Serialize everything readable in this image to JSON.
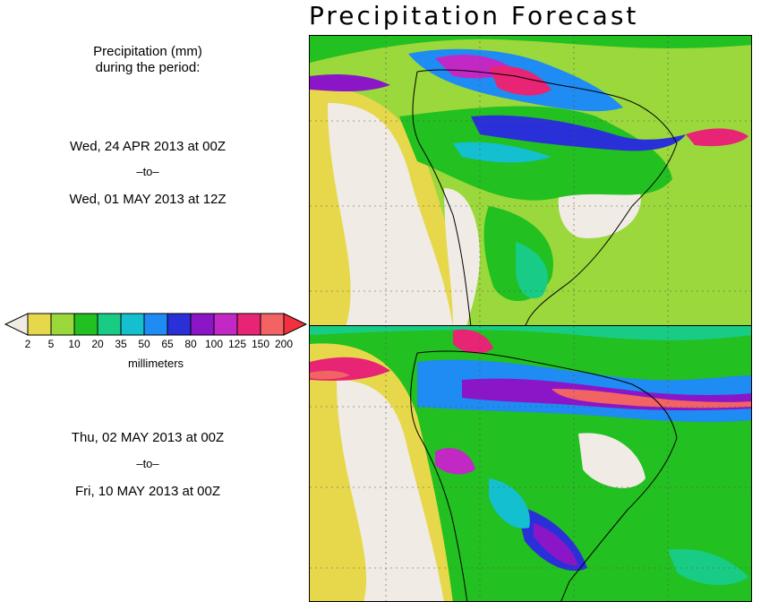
{
  "title": "Precipitation Forecast",
  "period_heading": {
    "line1": "Precipitation (mm)",
    "line2": "during the period:"
  },
  "period1": {
    "start": "Wed, 24 APR 2013 at 00Z",
    "to": "–to–",
    "end": "Wed, 01 MAY 2013 at 12Z"
  },
  "period2": {
    "start": "Thu, 02 MAY 2013 at 00Z",
    "to": "–to–",
    "end": "Fri, 10 MAY 2013 at 00Z"
  },
  "legend": {
    "units": "millimeters",
    "thresholds": [
      "2",
      "5",
      "10",
      "20",
      "35",
      "50",
      "65",
      "80",
      "100",
      "125",
      "150",
      "200"
    ],
    "colors": {
      "below": "#f0ebe4",
      "bins": [
        "#e6d84a",
        "#9ad83c",
        "#22c020",
        "#18cc86",
        "#14bfd0",
        "#1e8cf2",
        "#2a30d8",
        "#8a16c8",
        "#c228c4",
        "#e82474",
        "#f26464"
      ],
      "above": "#f23040"
    }
  }
}
